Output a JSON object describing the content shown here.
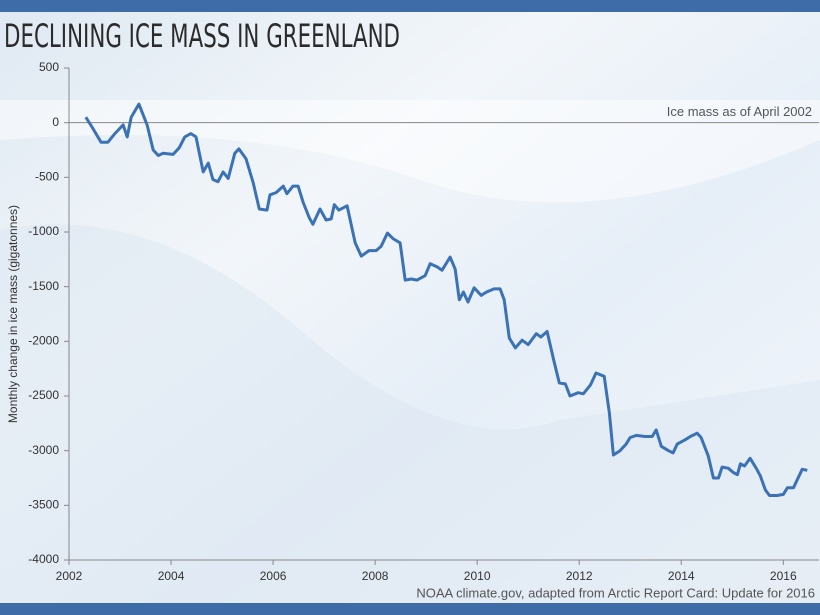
{
  "chart_data": {
    "type": "line",
    "title": "DECLINING ICE MASS IN GREENLAND",
    "y_label": "Monthly change in ice mass (gigatonnes)",
    "annotation": "Ice mass as of April 2002",
    "source": "NOAA climate.gov, adapted from Arctic Report Card: Update for 2016",
    "color": "#3b72b5",
    "x": [
      2002.33,
      2002.45,
      2002.63,
      2002.76,
      2002.9,
      2003.06,
      2003.14,
      2003.22,
      2003.37,
      2003.53,
      2003.65,
      2003.75,
      2003.84,
      2004.04,
      2004.16,
      2004.27,
      2004.39,
      2004.49,
      2004.63,
      2004.73,
      2004.82,
      2004.92,
      2005.02,
      2005.12,
      2005.25,
      2005.33,
      2005.47,
      2005.61,
      2005.73,
      2005.88,
      2005.94,
      2006.06,
      2006.2,
      2006.27,
      2006.39,
      2006.49,
      2006.59,
      2006.71,
      2006.78,
      2006.92,
      2007.04,
      2007.14,
      2007.2,
      2007.29,
      2007.45,
      2007.61,
      2007.73,
      2007.88,
      2008.02,
      2008.12,
      2008.24,
      2008.35,
      2008.49,
      2008.59,
      2008.71,
      2008.82,
      2008.98,
      2009.08,
      2009.22,
      2009.31,
      2009.47,
      2009.57,
      2009.65,
      2009.73,
      2009.82,
      2009.94,
      2010.08,
      2010.18,
      2010.33,
      2010.45,
      2010.53,
      2010.63,
      2010.75,
      2010.88,
      2011.0,
      2011.16,
      2011.25,
      2011.37,
      2011.51,
      2011.61,
      2011.73,
      2011.82,
      2011.98,
      2012.08,
      2012.22,
      2012.33,
      2012.49,
      2012.59,
      2012.67,
      2012.8,
      2012.92,
      2013.0,
      2013.12,
      2013.29,
      2013.43,
      2013.51,
      2013.61,
      2013.75,
      2013.84,
      2013.92,
      2014.08,
      2014.18,
      2014.31,
      2014.39,
      2014.53,
      2014.63,
      2014.73,
      2014.8,
      2014.92,
      2015.02,
      2015.1,
      2015.16,
      2015.24,
      2015.35,
      2015.47,
      2015.55,
      2015.65,
      2015.73,
      2015.88,
      2016.0,
      2016.08,
      2016.2,
      2016.25,
      2016.37,
      2016.47
    ],
    "values": [
      50,
      -40,
      -180,
      -180,
      -100,
      -20,
      -130,
      50,
      170,
      -20,
      -250,
      -300,
      -280,
      -290,
      -230,
      -130,
      -100,
      -130,
      -450,
      -370,
      -520,
      -540,
      -450,
      -510,
      -280,
      -240,
      -330,
      -550,
      -790,
      -800,
      -660,
      -640,
      -580,
      -650,
      -580,
      -580,
      -730,
      -870,
      -930,
      -790,
      -890,
      -880,
      -750,
      -800,
      -760,
      -1100,
      -1220,
      -1170,
      -1170,
      -1130,
      -1010,
      -1060,
      -1100,
      -1440,
      -1430,
      -1440,
      -1400,
      -1290,
      -1320,
      -1350,
      -1230,
      -1340,
      -1620,
      -1550,
      -1640,
      -1510,
      -1580,
      -1550,
      -1520,
      -1520,
      -1620,
      -1970,
      -2060,
      -1990,
      -2030,
      -1930,
      -1960,
      -1910,
      -2190,
      -2380,
      -2390,
      -2500,
      -2470,
      -2480,
      -2400,
      -2290,
      -2320,
      -2650,
      -3040,
      -3000,
      -2940,
      -2880,
      -2860,
      -2870,
      -2870,
      -2810,
      -2960,
      -3000,
      -3020,
      -2940,
      -2900,
      -2870,
      -2840,
      -2880,
      -3050,
      -3250,
      -3250,
      -3150,
      -3160,
      -3200,
      -3220,
      -3120,
      -3140,
      -3070,
      -3160,
      -3230,
      -3360,
      -3410,
      -3410,
      -3400,
      -3340,
      -3340,
      -3290,
      -3170,
      -3180
    ],
    "xlim": [
      2002,
      2016.7
    ],
    "xticks": [
      2002,
      2004,
      2006,
      2008,
      2010,
      2012,
      2014,
      2016
    ],
    "ylim": [
      -4000,
      500
    ],
    "yticks": [
      -4000,
      -3500,
      -3000,
      -2500,
      -2000,
      -1500,
      -1000,
      -500,
      0,
      500
    ]
  }
}
